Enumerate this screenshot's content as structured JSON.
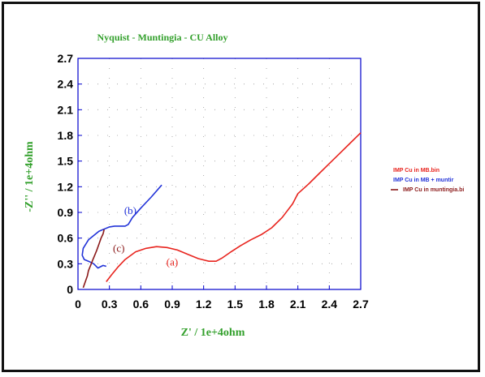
{
  "colors": {
    "title": "#33a02c",
    "axis_label": "#33a02c",
    "frame": "#0000cc",
    "grid": "#9a9a9a"
  },
  "chart_data": {
    "type": "line",
    "title": "Nyquist - Muntingia - CU Alloy",
    "xlabel": "Z' / 1e+4ohm",
    "ylabel": "-Z'' / 1e+4ohm",
    "xlim": [
      0,
      2.7
    ],
    "ylim": [
      0,
      2.7
    ],
    "xticks": [
      0,
      0.3,
      0.6,
      0.9,
      1.2,
      1.5,
      1.8,
      2.1,
      2.4,
      2.7
    ],
    "yticks": [
      0,
      0.3,
      0.6,
      0.9,
      1.2,
      1.5,
      1.8,
      2.1,
      2.4,
      2.7
    ],
    "xtick_labels": [
      "0",
      "0.3",
      "0.6",
      "0.9",
      "1.2",
      "1.5",
      "1.8",
      "2.1",
      "2.4",
      "2.7"
    ],
    "ytick_labels": [
      "0",
      "0.3",
      "0.6",
      "0.9",
      "1.2",
      "1.5",
      "1.8",
      "2.1",
      "2.4",
      "2.7"
    ],
    "grid": true,
    "legend_position": "right",
    "series": [
      {
        "name": "IMP Cu in MB.bin",
        "color": "#e8241e",
        "annotation": "(a)",
        "x": [
          0.27,
          0.32,
          0.38,
          0.45,
          0.55,
          0.65,
          0.75,
          0.85,
          0.95,
          1.05,
          1.15,
          1.25,
          1.32,
          1.38,
          1.45,
          1.55,
          1.65,
          1.75,
          1.85,
          1.95,
          2.05,
          2.1,
          2.2,
          2.3,
          2.4,
          2.5,
          2.6,
          2.7
        ],
        "y": [
          0.09,
          0.17,
          0.26,
          0.35,
          0.44,
          0.48,
          0.5,
          0.49,
          0.46,
          0.41,
          0.36,
          0.33,
          0.33,
          0.37,
          0.43,
          0.51,
          0.58,
          0.64,
          0.72,
          0.84,
          1.0,
          1.12,
          1.23,
          1.35,
          1.47,
          1.59,
          1.71,
          1.83
        ]
      },
      {
        "name": "IMP Cu in MB + muntir",
        "color": "#2233d8",
        "annotation": "(b)",
        "x": [
          0.8,
          0.7,
          0.6,
          0.52,
          0.48,
          0.45,
          0.4,
          0.35,
          0.3,
          0.2,
          0.1,
          0.05,
          0.04,
          0.06,
          0.1,
          0.15,
          0.19,
          0.24,
          0.27
        ],
        "y": [
          1.22,
          1.08,
          0.95,
          0.84,
          0.76,
          0.74,
          0.74,
          0.74,
          0.73,
          0.68,
          0.58,
          0.48,
          0.4,
          0.35,
          0.33,
          0.3,
          0.25,
          0.28,
          0.27
        ]
      },
      {
        "name": "IMP Cu in muntingia.bi",
        "color": "#8b1a1a",
        "annotation": "(c)",
        "x": [
          0.05,
          0.07,
          0.09,
          0.1,
          0.12,
          0.14,
          0.16,
          0.18,
          0.2,
          0.22,
          0.24,
          0.25
        ],
        "y": [
          0.02,
          0.09,
          0.16,
          0.22,
          0.28,
          0.34,
          0.4,
          0.46,
          0.53,
          0.6,
          0.65,
          0.7
        ]
      }
    ],
    "annotations": [
      "(a)",
      "(b)",
      "(c)"
    ]
  }
}
